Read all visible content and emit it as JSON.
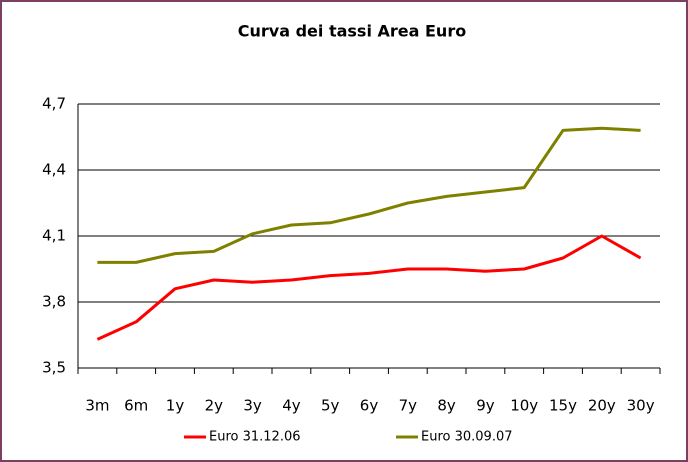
{
  "chart_data": {
    "type": "line",
    "title": "Curva dei tassi Area Euro",
    "categories": [
      "3m",
      "6m",
      "1y",
      "2y",
      "3y",
      "4y",
      "5y",
      "6y",
      "7y",
      "8y",
      "9y",
      "10y",
      "15y",
      "20y",
      "30y"
    ],
    "series": [
      {
        "name": "Euro 31.12.06",
        "color": "#ff0000",
        "values": [
          3.63,
          3.71,
          3.86,
          3.9,
          3.89,
          3.9,
          3.92,
          3.93,
          3.95,
          3.95,
          3.94,
          3.95,
          4.0,
          4.1,
          4.0
        ]
      },
      {
        "name": "Euro 30.09.07",
        "color": "#808000",
        "values": [
          3.98,
          3.98,
          4.02,
          4.03,
          4.11,
          4.15,
          4.16,
          4.2,
          4.25,
          4.28,
          4.3,
          4.32,
          4.58,
          4.59,
          4.58
        ]
      }
    ],
    "ylim": [
      3.5,
      4.7
    ],
    "yticks": [
      {
        "value": 3.5,
        "label": "3,5"
      },
      {
        "value": 3.8,
        "label": "3,8"
      },
      {
        "value": 4.1,
        "label": "4,1"
      },
      {
        "value": 4.4,
        "label": "4,4"
      },
      {
        "value": 4.7,
        "label": "4,7"
      }
    ],
    "grid": true,
    "legend": "bottom"
  }
}
